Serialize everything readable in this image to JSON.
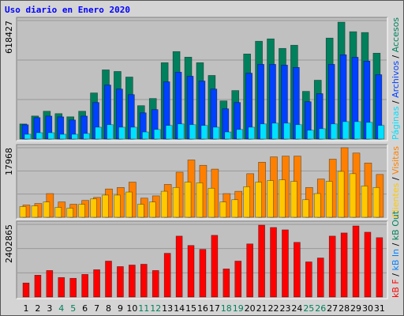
{
  "title": "Uso diario en Enero 2020",
  "legend_separator": " / ",
  "categories": [
    "1",
    "2",
    "3",
    "4",
    "5",
    "6",
    "7",
    "8",
    "9",
    "10",
    "11",
    "12",
    "13",
    "14",
    "15",
    "16",
    "17",
    "18",
    "19",
    "20",
    "21",
    "22",
    "23",
    "24",
    "25",
    "26",
    "27",
    "28",
    "29",
    "30",
    "31"
  ],
  "label_colors": [
    "#000000",
    "#000000",
    "#000000",
    "#00805c",
    "#00805c",
    "#000000",
    "#000000",
    "#000000",
    "#000000",
    "#000000",
    "#00805c",
    "#00805c",
    "#000000",
    "#000000",
    "#000000",
    "#000000",
    "#000000",
    "#00805c",
    "#00805c",
    "#000000",
    "#000000",
    "#000000",
    "#000000",
    "#000000",
    "#00805c",
    "#00805c",
    "#000000",
    "#000000",
    "#000000",
    "#000000",
    "#000000"
  ],
  "chart_data": [
    {
      "type": "bar",
      "ylim": [
        0,
        618427
      ],
      "yticks": [
        618427
      ],
      "series": [
        {
          "name": "Accesos",
          "color": "#00805c",
          "values": [
            78860,
            120365,
            145268,
            132816,
            116214,
            145268,
            240729,
            361094,
            352793,
            323739,
            174321,
            211676,
            398448,
            456555,
            427502,
            398448,
            332040,
            199224,
            253181,
            444104,
            510512,
            522963,
            473157,
            489759,
            249030,
            307137,
            527114,
            610124,
            560318,
            556167,
            448254
          ]
        },
        {
          "name": "Archivos",
          "color": "#0040ff",
          "values": [
            74700,
            112000,
            120000,
            116000,
            99600,
            120000,
            191000,
            282000,
            261000,
            232000,
            137000,
            154000,
            299000,
            349000,
            328000,
            303000,
            261000,
            158000,
            191000,
            344000,
            390000,
            390000,
            386000,
            374000,
            195000,
            237000,
            390000,
            440000,
            427000,
            407000,
            336000
          ]
        },
        {
          "name": "Páginas",
          "color": "#00e0ff",
          "values": [
            25000,
            33000,
            33000,
            25000,
            25000,
            29000,
            62000,
            75000,
            62000,
            62000,
            37000,
            50000,
            71000,
            79000,
            75000,
            71000,
            62000,
            37000,
            50000,
            62000,
            79000,
            83000,
            83000,
            75000,
            46000,
            54000,
            79000,
            91000,
            91000,
            87000,
            71000
          ]
        }
      ]
    },
    {
      "type": "bar",
      "ylim": [
        0,
        17968
      ],
      "yticks": [
        17968
      ],
      "series": [
        {
          "name": "Visitas",
          "color": "#ff8000",
          "values": [
            3160,
            3555,
            6120,
            3950,
            3360,
            4345,
            5135,
            7310,
            7700,
            9085,
            4940,
            5530,
            8490,
            11650,
            14810,
            13430,
            12440,
            6120,
            6715,
            11260,
            14220,
            15600,
            15800,
            15800,
            7700,
            9875,
            15010,
            17968,
            16590,
            14020,
            11060
          ]
        },
        {
          "name": "Clientes",
          "color": "#ffc800",
          "values": [
            2765,
            2960,
            3950,
            2570,
            2370,
            3360,
            4740,
            5730,
            5730,
            6520,
            3360,
            3950,
            6715,
            7700,
            9085,
            8890,
            7505,
            3950,
            4540,
            7900,
            9085,
            9480,
            9680,
            9280,
            4540,
            6120,
            9280,
            11850,
            11260,
            8100,
            7700
          ]
        }
      ]
    },
    {
      "type": "bar",
      "ylim": [
        0,
        2402865
      ],
      "yticks": [
        2402865
      ],
      "series": [
        {
          "name": "kB F",
          "color": "#ff0000",
          "values": [
            465000,
            723000,
            878000,
            646000,
            620000,
            749000,
            904000,
            1189000,
            1008000,
            1059000,
            1085000,
            878000,
            1447000,
            2015000,
            1705000,
            1576000,
            2041000,
            930000,
            1189000,
            1757000,
            2377000,
            2300000,
            2222000,
            1809000,
            1163000,
            1292000,
            2015000,
            2119000,
            2351000,
            2144000,
            1964000
          ]
        }
      ],
      "extra_labels": [
        {
          "text": "kB In",
          "color": "#0080ff"
        },
        {
          "text": "kB Out",
          "color": "#00805c"
        }
      ]
    }
  ]
}
